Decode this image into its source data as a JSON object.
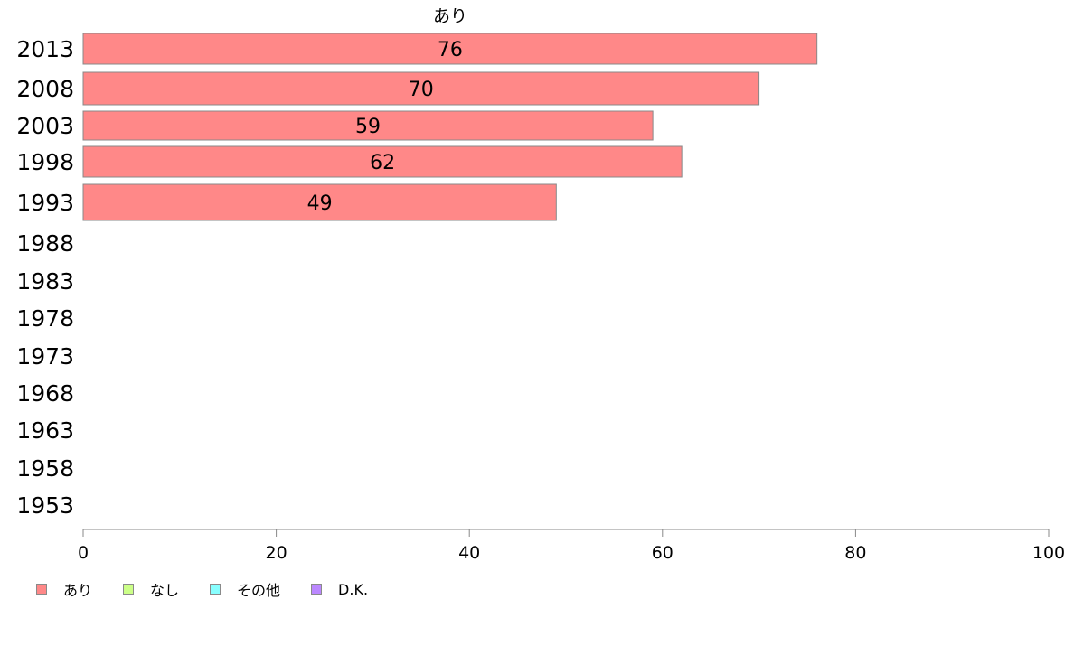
{
  "chart_data": {
    "type": "bar",
    "orientation": "horizontal",
    "title": "あり",
    "categories": [
      "2013",
      "2008",
      "2003",
      "1998",
      "1993",
      "1988",
      "1983",
      "1978",
      "1973",
      "1968",
      "1963",
      "1958",
      "1953"
    ],
    "series": [
      {
        "name": "あり",
        "color": "#ff8888",
        "values": [
          76,
          70,
          59,
          62,
          49,
          null,
          null,
          null,
          null,
          null,
          null,
          null,
          null
        ],
        "labels": [
          "76",
          "70",
          "59",
          "62",
          "49",
          "",
          "",
          "",
          "",
          "",
          "",
          "",
          ""
        ]
      }
    ],
    "xlim": [
      0,
      100
    ],
    "xticks": [
      "0",
      "20",
      "40",
      "60",
      "80",
      "100"
    ],
    "grid": false,
    "legend_position": "bottom-left"
  },
  "legend": {
    "items": [
      {
        "label": "あり",
        "color": "#ff8888"
      },
      {
        "label": "なし",
        "color": "#ccff88"
      },
      {
        "label": "その他",
        "color": "#88ffff"
      },
      {
        "label": "D.K.",
        "color": "#bb88ff"
      }
    ]
  }
}
